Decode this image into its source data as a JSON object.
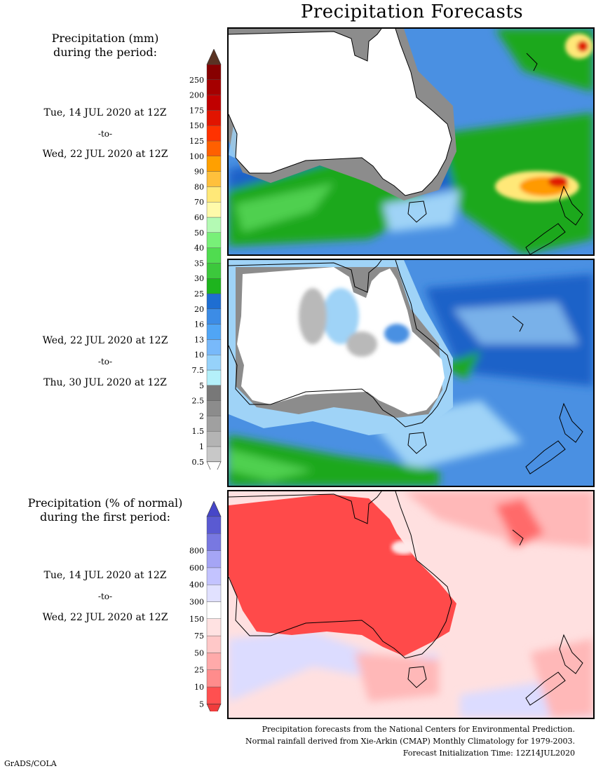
{
  "title": "Precipitation Forecasts",
  "section1": {
    "heading_line1": "Precipitation (mm)",
    "heading_line2": "during the period:",
    "period1": {
      "start": "Tue, 14 JUL 2020 at 12Z",
      "to": "-to-",
      "end": "Wed, 22 JUL 2020 at 12Z"
    },
    "period2": {
      "start": "Wed, 22 JUL 2020 at 12Z",
      "to": "-to-",
      "end": "Thu, 30 JUL 2020 at 12Z"
    }
  },
  "mm_scale": {
    "labels": [
      "0.5",
      "1",
      "1.5",
      "2",
      "2.5",
      "5",
      "7.5",
      "10",
      "13",
      "16",
      "20",
      "25",
      "30",
      "35",
      "40",
      "50",
      "60",
      "70",
      "80",
      "90",
      "100",
      "125",
      "150",
      "175",
      "200",
      "250"
    ],
    "colors": [
      "#c8c8c8",
      "#b4b4b4",
      "#a0a0a0",
      "#8c8c8c",
      "#787878",
      "#b4f0fa",
      "#96d2fa",
      "#78b9fa",
      "#50a5f5",
      "#3c8ce6",
      "#1e6ed2",
      "#1eb41e",
      "#3cc83c",
      "#50dc50",
      "#78f078",
      "#b4fab4",
      "#fffaaa",
      "#ffe878",
      "#ffc03c",
      "#ffa000",
      "#ff6000",
      "#ff3200",
      "#e11400",
      "#c00000",
      "#a50000",
      "#870000"
    ],
    "top_arrow_color": "#5a3323",
    "bottom_arrow_color": "#ffffff"
  },
  "section2": {
    "heading_line1": "Precipitation (% of normal)",
    "heading_line2": "during the first period:",
    "period": {
      "start": "Tue, 14 JUL 2020 at 12Z",
      "to": "-to-",
      "end": "Wed, 22 JUL 2020 at 12Z"
    }
  },
  "pct_scale": {
    "labels": [
      "5",
      "10",
      "25",
      "50",
      "75",
      "150",
      "300",
      "400",
      "600",
      "800"
    ],
    "colors": [
      "#ff5050",
      "#ff8c8c",
      "#ffaaaa",
      "#ffc8c8",
      "#ffe2e2",
      "#ffffff",
      "#e1e1ff",
      "#c3c3ff",
      "#a5a5f5",
      "#7878e1",
      "#5a5ad2"
    ],
    "top_arrow_color": "#4646c8",
    "bottom_arrow_color": "#f03c3c"
  },
  "credits": {
    "line1": "Precipitation forecasts from the National Centers for Environmental Prediction.",
    "line2": "Normal rainfall derived from Xie-Arkin (CMAP) Monthly Climatology for 1979-2003.",
    "line3": "Forecast Initialization Time: 12Z14JUL2020"
  },
  "footer_label": "GrADS/COLA",
  "map_colors": {
    "land_dry": "#ffffff",
    "ocean_light": "#9fd3f7",
    "ocean_mid": "#4a90e2",
    "ocean_deep": "#1e62c8",
    "green": "#1fa81f",
    "green_light": "#4fd04f",
    "gray": "#8c8c8c",
    "gray_light": "#b9b9b9",
    "yellow": "#ffe878",
    "orange": "#ff9a00",
    "red": "#e01a00",
    "pct_red": "#ff4a4a",
    "pct_pink": "#ffb8b8",
    "pct_pale": "#ffe0e0",
    "pct_blue": "#dcdcff",
    "coast": "#000000"
  }
}
